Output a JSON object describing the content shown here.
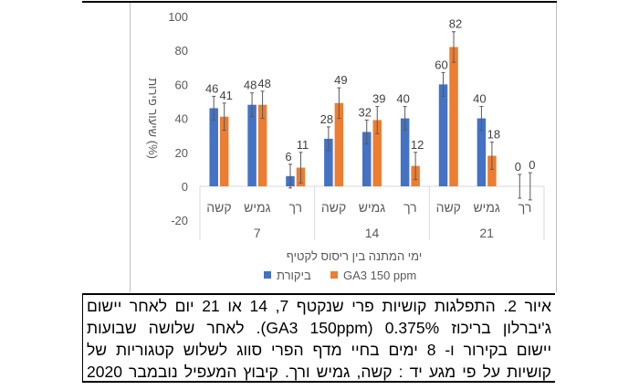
{
  "chart_data": {
    "type": "bar",
    "ylabel": "שיעור פירות (%)",
    "xlabel": "ימי המתנה בין ריסוס לקטיף",
    "ylim": [
      -20,
      100
    ],
    "yticks": [
      100,
      80,
      60,
      40,
      20,
      0,
      -20
    ],
    "grid": false,
    "legend_position": "bottom",
    "groups": [
      {
        "label": "7",
        "categories": [
          "קשה",
          "גמיש",
          "רך"
        ]
      },
      {
        "label": "14",
        "categories": [
          "קשה",
          "גמיש",
          "רך"
        ]
      },
      {
        "label": "21",
        "categories": [
          "קשה",
          "גמיש",
          "רך"
        ]
      }
    ],
    "series": [
      {
        "name": "ביקורת",
        "color": "#4472c4",
        "values": [
          46,
          48,
          6,
          28,
          32,
          40,
          60,
          40,
          0
        ],
        "errors": [
          7,
          7,
          7,
          7,
          7,
          7,
          7,
          7,
          7
        ]
      },
      {
        "name": "GA3 150 ppm",
        "color": "#ed7d31",
        "values": [
          41,
          48,
          11,
          49,
          39,
          12,
          82,
          18,
          0
        ],
        "errors": [
          8,
          8,
          9,
          9,
          8,
          8,
          9,
          8,
          8
        ]
      }
    ]
  },
  "caption": {
    "lines": [
      "איור 2. התפלגות קושיות פרי שנקטף 7, 14 או 21 יום לאחר יישום",
      "ג'יברלון בריכוז 0.375% (GA3 150ppm). לאחר שלושה שבועות",
      "יישום בקירור ו- 8 ימים בחיי מדף הפרי סווג לשלוש קטגוריות של",
      "קושיות על פי מגע יד : קשה, גמיש ורך. קיבוץ המעפיל נובמבר 2020"
    ]
  }
}
